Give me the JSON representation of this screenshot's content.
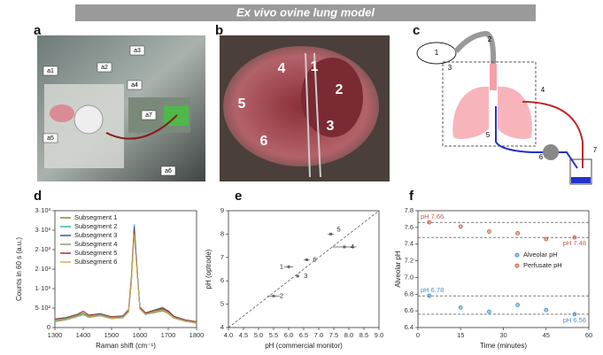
{
  "title": "Ex vivo ovine lung model",
  "panel_a": {
    "label": "a",
    "callouts": [
      "a1",
      "a2",
      "a3",
      "a4",
      "a5",
      "a6",
      "a7"
    ]
  },
  "panel_b": {
    "label": "b",
    "numbers": [
      "1",
      "2",
      "3",
      "4",
      "5",
      "6"
    ]
  },
  "panel_c": {
    "label": "c",
    "numbers": [
      "1",
      "2",
      "3",
      "4",
      "5",
      "6",
      "7"
    ]
  },
  "chart_data": [
    {
      "panel": "d",
      "type": "line",
      "x": [
        1300,
        1340,
        1380,
        1400,
        1420,
        1460,
        1500,
        1540,
        1560,
        1570,
        1580,
        1590,
        1600,
        1620,
        1650,
        1680,
        1700,
        1720,
        1760,
        1800
      ],
      "series": [
        {
          "name": "Subsegment 1",
          "color": "#8b8b2e",
          "values": [
            180,
            220,
            300,
            350,
            280,
            320,
            240,
            260,
            420,
            1250,
            2550,
            1450,
            480,
            340,
            380,
            430,
            360,
            240,
            160,
            120
          ]
        },
        {
          "name": "Subsegment 2",
          "color": "#3cb3a0",
          "values": [
            200,
            240,
            320,
            380,
            300,
            340,
            260,
            280,
            450,
            1300,
            2650,
            1550,
            520,
            380,
            450,
            520,
            420,
            280,
            190,
            140
          ]
        },
        {
          "name": "Subsegment 3",
          "color": "#3f51a5",
          "values": [
            150,
            200,
            280,
            330,
            260,
            300,
            230,
            250,
            400,
            1200,
            2600,
            1500,
            500,
            360,
            420,
            480,
            400,
            260,
            170,
            110
          ]
        },
        {
          "name": "Subsegment 4",
          "color": "#8c9c7a",
          "values": [
            170,
            210,
            290,
            340,
            270,
            310,
            235,
            255,
            410,
            1150,
            2450,
            1400,
            470,
            330,
            400,
            450,
            370,
            250,
            160,
            115
          ]
        },
        {
          "name": "Subsegment 5",
          "color": "#b02a2a",
          "values": [
            220,
            260,
            340,
            420,
            320,
            360,
            280,
            300,
            460,
            1280,
            2500,
            1480,
            530,
            380,
            440,
            500,
            430,
            290,
            200,
            150
          ]
        },
        {
          "name": "Subsegment 6",
          "color": "#c9b458",
          "values": [
            160,
            205,
            285,
            335,
            265,
            305,
            232,
            252,
            405,
            1180,
            2400,
            1420,
            490,
            345,
            410,
            460,
            380,
            255,
            165,
            118
          ]
        }
      ],
      "xlim": [
        1300,
        1800
      ],
      "xticks": [
        1300,
        1400,
        1500,
        1600,
        1700,
        1800
      ],
      "ylim": [
        0,
        3000
      ],
      "yticks": [
        0,
        {
          "value": 500,
          "label": "5·10²"
        },
        {
          "value": 1000,
          "label": "1·10³"
        },
        {
          "value": 1500,
          "label": "2·10³"
        },
        {
          "value": 2000,
          "label": "2·10³"
        },
        {
          "value": 2500,
          "label": "3·10³"
        },
        {
          "value": 3000,
          "label": "3·10³"
        }
      ],
      "xlabel": "Raman shift (cm⁻¹)",
      "ylabel": "Counts in 60 s (a.u.)",
      "legend": "upper-left"
    },
    {
      "panel": "e",
      "type": "scatter",
      "x": [
        6.0,
        5.5,
        6.3,
        7.85,
        7.4,
        6.6
      ],
      "x_error": [
        0.15,
        0.2,
        0.05,
        0.4,
        0.1,
        0.1
      ],
      "values": [
        6.6,
        5.35,
        6.2,
        7.45,
        8.0,
        6.9
      ],
      "labels": [
        "1",
        "2",
        "3",
        "4",
        "5",
        "6"
      ],
      "color": "#666666",
      "identity_line": true,
      "xlim": [
        4,
        9
      ],
      "xticks": [
        {
          "value": 4,
          "label": "4.0"
        },
        4.5,
        {
          "value": 5,
          "label": "5.0"
        },
        5.5,
        {
          "value": 6,
          "label": "6.0"
        },
        6.5,
        {
          "value": 7,
          "label": "7.0"
        },
        7.5,
        {
          "value": 8,
          "label": "8.0"
        },
        8.5,
        {
          "value": 9,
          "label": "9.0"
        }
      ],
      "ylim": [
        4,
        9
      ],
      "yticks": [
        4,
        5,
        6,
        7,
        8,
        9
      ],
      "xlabel": "pH (commercial monitor)",
      "ylabel": "pH (optrode)"
    },
    {
      "panel": "f",
      "type": "scatter",
      "x": [
        4,
        15,
        25,
        35,
        45,
        55
      ],
      "series": [
        {
          "name": "Alveolar pH",
          "color": "#4a8fc8",
          "values": [
            6.78,
            6.64,
            6.59,
            6.67,
            6.61,
            6.56
          ]
        },
        {
          "name": "Perfusate pH",
          "color": "#cf5a4a",
          "values": [
            7.66,
            7.61,
            7.55,
            7.53,
            7.46,
            7.48
          ]
        }
      ],
      "annotations": [
        {
          "text": "pH 7.66",
          "value": 7.66
        },
        {
          "text": "pH 7.48",
          "value": 7.48
        },
        {
          "text": "pH 6.78",
          "value": 6.78
        },
        {
          "text": "pH 6.56",
          "value": 6.56
        }
      ],
      "xlim": [
        0,
        60
      ],
      "xticks": [
        0,
        15,
        30,
        45,
        60
      ],
      "ylim": [
        6.4,
        7.8
      ],
      "yticks": [
        6.4,
        6.6,
        6.8,
        {
          "value": 7.0,
          "label": "7.0"
        },
        7.2,
        7.4,
        7.6,
        7.8
      ],
      "xlabel": "Time (minutes)",
      "ylabel": "Alveolar pH",
      "legend": "center-right"
    }
  ]
}
